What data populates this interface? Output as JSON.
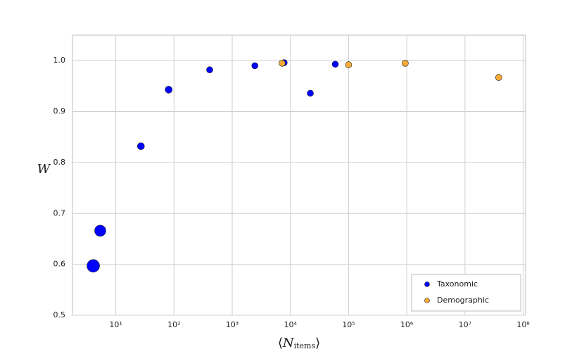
{
  "chart_data": {
    "type": "scatter",
    "xlabel": {
      "open": "⟨",
      "symbol": "N",
      "subscript": "items",
      "close": "⟩"
    },
    "ylabel": "W",
    "xscale": "log",
    "xlim": [
      1.8,
      110000000
    ],
    "ylim": [
      0.5,
      1.05
    ],
    "xticks": [
      {
        "value": 10,
        "label": "10¹"
      },
      {
        "value": 100,
        "label": "10²"
      },
      {
        "value": 1000,
        "label": "10³"
      },
      {
        "value": 10000,
        "label": "10⁴"
      },
      {
        "value": 100000,
        "label": "10⁵"
      },
      {
        "value": 1000000,
        "label": "10⁶"
      },
      {
        "value": 10000000,
        "label": "10⁷"
      },
      {
        "value": 100000000,
        "label": "10⁸"
      }
    ],
    "yticks": [
      0.5,
      0.6,
      0.7,
      0.8,
      0.9,
      {
        "value": 1,
        "label": "1.0"
      }
    ],
    "grid": true,
    "legend": "lower right",
    "series": [
      {
        "name": "Taxonomic",
        "color": "#0000ff",
        "x": [
          4.1,
          5.4,
          27,
          81,
          410,
          2450,
          7800,
          22000,
          59000
        ],
        "values": [
          0.597,
          0.666,
          0.832,
          0.943,
          0.982,
          0.99,
          0.996,
          0.936,
          0.993
        ],
        "sizes": [
          9,
          8,
          5,
          5,
          4.5,
          4.5,
          4.5,
          4.5,
          4.5
        ]
      },
      {
        "name": "Demographic",
        "color": "#f9a935",
        "x": [
          7200,
          100000,
          940000,
          38000000
        ],
        "values": [
          0.995,
          0.992,
          0.995,
          0.967
        ]
      }
    ]
  }
}
